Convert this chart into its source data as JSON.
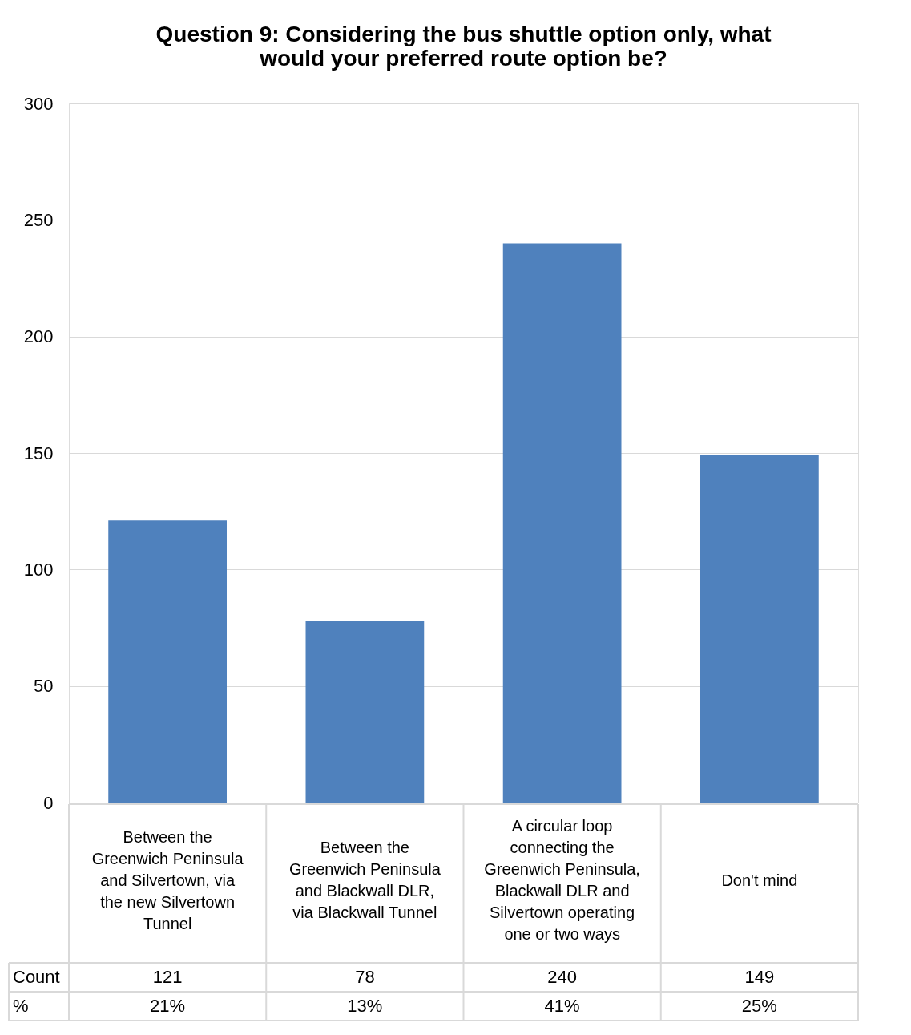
{
  "chart_data": {
    "type": "bar",
    "title": "Question 9: Considering the bus shuttle option only, what would your preferred route option be?",
    "categories": [
      "Between the Greenwich Peninsula and Silvertown, via the new Silvertown Tunnel",
      "Between the Greenwich Peninsula and Blackwall DLR, via Blackwall Tunnel",
      "A circular loop connecting the Greenwich Peninsula, Blackwall DLR and Silvertown operating one or two ways",
      "Don't mind"
    ],
    "values": [
      121,
      78,
      240,
      149
    ],
    "color": "#4f81bd",
    "ylim": [
      0,
      300
    ],
    "yticks": [
      0,
      50,
      100,
      150,
      200,
      250,
      300
    ],
    "grid": "y",
    "data_labels": true,
    "annotations": [
      "Count",
      "%",
      "21%",
      "13%",
      "41%",
      "25%"
    ]
  }
}
